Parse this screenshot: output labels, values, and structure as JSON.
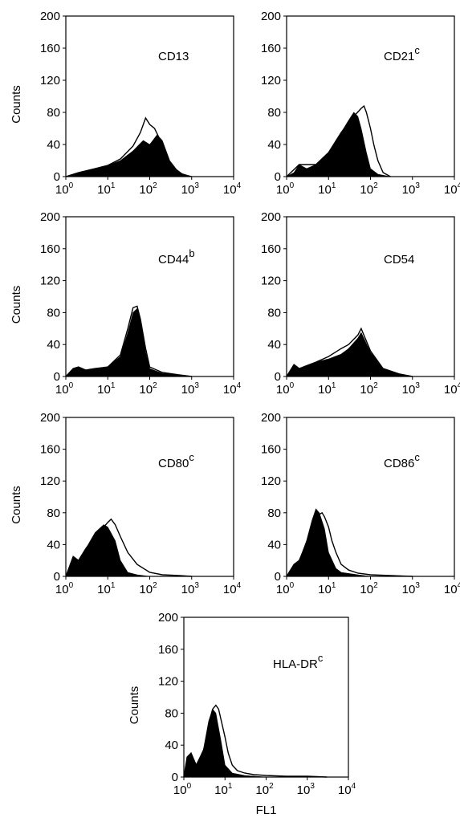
{
  "chart_data": [
    {
      "type": "area",
      "marker": "CD13",
      "marker_sup": "",
      "ylabel": "Counts",
      "xlabel": "",
      "xscale": "log",
      "xlim": [
        1,
        10000
      ],
      "ylim": [
        0,
        200
      ],
      "xticks": [
        {
          "base": "10",
          "exp": "0"
        },
        {
          "base": "10",
          "exp": "1"
        },
        {
          "base": "10",
          "exp": "2"
        },
        {
          "base": "10",
          "exp": "3"
        },
        {
          "base": "10",
          "exp": "4"
        }
      ],
      "yticks": [
        "0",
        "40",
        "80",
        "120",
        "160",
        "200"
      ],
      "series": [
        {
          "fill": "solid",
          "x": [
            1,
            2,
            5,
            10,
            20,
            40,
            70,
            100,
            150,
            200,
            300,
            500,
            1000
          ],
          "y": [
            0,
            5,
            10,
            14,
            20,
            32,
            45,
            40,
            52,
            45,
            20,
            5,
            0
          ]
        },
        {
          "fill": "open",
          "x": [
            1,
            2,
            5,
            10,
            20,
            40,
            60,
            80,
            100,
            130,
            200,
            300,
            600,
            1000
          ],
          "y": [
            0,
            5,
            10,
            14,
            22,
            38,
            55,
            73,
            65,
            60,
            40,
            15,
            3,
            0
          ]
        }
      ]
    },
    {
      "type": "area",
      "marker": "CD21",
      "marker_sup": "c",
      "ylabel": "",
      "xlabel": "",
      "xscale": "log",
      "xlim": [
        1,
        10000
      ],
      "ylim": [
        0,
        200
      ],
      "xticks": [
        {
          "base": "10",
          "exp": "0"
        },
        {
          "base": "10",
          "exp": "1"
        },
        {
          "base": "10",
          "exp": "2"
        },
        {
          "base": "10",
          "exp": "3"
        },
        {
          "base": "10",
          "exp": "4"
        }
      ],
      "yticks": [
        "0",
        "40",
        "80",
        "120",
        "160",
        "200"
      ],
      "series": [
        {
          "fill": "solid",
          "x": [
            1,
            1.5,
            2,
            3,
            5,
            10,
            15,
            20,
            30,
            40,
            50,
            60,
            80,
            100,
            150,
            300
          ],
          "y": [
            0,
            5,
            15,
            10,
            15,
            30,
            45,
            55,
            70,
            80,
            75,
            60,
            30,
            10,
            3,
            0
          ]
        },
        {
          "fill": "open",
          "x": [
            1,
            2,
            5,
            10,
            20,
            40,
            60,
            70,
            80,
            100,
            120,
            150,
            200,
            300
          ],
          "y": [
            0,
            15,
            15,
            30,
            55,
            75,
            85,
            88,
            80,
            60,
            40,
            20,
            5,
            0
          ]
        }
      ]
    },
    {
      "type": "area",
      "marker": "CD44",
      "marker_sup": "b",
      "ylabel": "Counts",
      "xlabel": "",
      "xscale": "log",
      "xlim": [
        1,
        10000
      ],
      "ylim": [
        0,
        200
      ],
      "xticks": [
        {
          "base": "10",
          "exp": "0"
        },
        {
          "base": "10",
          "exp": "1"
        },
        {
          "base": "10",
          "exp": "2"
        },
        {
          "base": "10",
          "exp": "3"
        },
        {
          "base": "10",
          "exp": "4"
        }
      ],
      "yticks": [
        "0",
        "40",
        "80",
        "120",
        "160",
        "200"
      ],
      "series": [
        {
          "fill": "solid",
          "x": [
            1,
            1.5,
            2,
            3,
            5,
            10,
            20,
            30,
            40,
            50,
            60,
            80,
            100,
            200,
            500,
            1000
          ],
          "y": [
            0,
            10,
            12,
            8,
            10,
            12,
            25,
            55,
            80,
            85,
            70,
            30,
            10,
            4,
            2,
            0
          ]
        },
        {
          "fill": "open",
          "x": [
            1,
            1.5,
            2,
            3,
            5,
            10,
            20,
            30,
            40,
            50,
            60,
            80,
            100,
            200,
            500,
            1000
          ],
          "y": [
            0,
            10,
            12,
            8,
            10,
            12,
            27,
            60,
            86,
            88,
            72,
            35,
            12,
            5,
            2,
            0
          ]
        }
      ]
    },
    {
      "type": "area",
      "marker": "CD54",
      "marker_sup": "",
      "ylabel": "",
      "xlabel": "",
      "xscale": "log",
      "xlim": [
        1,
        10000
      ],
      "ylim": [
        0,
        200
      ],
      "xticks": [
        {
          "base": "10",
          "exp": "0"
        },
        {
          "base": "10",
          "exp": "1"
        },
        {
          "base": "10",
          "exp": "2"
        },
        {
          "base": "10",
          "exp": "3"
        },
        {
          "base": "10",
          "exp": "4"
        }
      ],
      "yticks": [
        "0",
        "40",
        "80",
        "120",
        "160",
        "200"
      ],
      "series": [
        {
          "fill": "solid",
          "x": [
            1,
            1.5,
            2,
            5,
            10,
            20,
            30,
            50,
            60,
            100,
            200,
            500,
            1000
          ],
          "y": [
            0,
            15,
            10,
            18,
            22,
            28,
            35,
            48,
            55,
            30,
            10,
            3,
            0
          ]
        },
        {
          "fill": "open",
          "x": [
            1,
            1.5,
            2,
            5,
            10,
            20,
            30,
            50,
            60,
            100,
            200,
            500,
            1000
          ],
          "y": [
            0,
            15,
            10,
            18,
            25,
            35,
            40,
            52,
            60,
            32,
            10,
            3,
            0
          ]
        }
      ]
    },
    {
      "type": "area",
      "marker": "CD80",
      "marker_sup": "c",
      "ylabel": "Counts",
      "xlabel": "",
      "xscale": "log",
      "xlim": [
        1,
        10000
      ],
      "ylim": [
        0,
        200
      ],
      "xticks": [
        {
          "base": "10",
          "exp": "0"
        },
        {
          "base": "10",
          "exp": "1"
        },
        {
          "base": "10",
          "exp": "2"
        },
        {
          "base": "10",
          "exp": "3"
        },
        {
          "base": "10",
          "exp": "4"
        }
      ],
      "yticks": [
        "0",
        "40",
        "80",
        "120",
        "160",
        "200"
      ],
      "series": [
        {
          "fill": "solid",
          "x": [
            1,
            1.5,
            2,
            3,
            5,
            8,
            10,
            15,
            20,
            30,
            50,
            100
          ],
          "y": [
            0,
            25,
            20,
            35,
            55,
            65,
            62,
            45,
            20,
            5,
            2,
            0
          ]
        },
        {
          "fill": "open",
          "x": [
            1,
            1.5,
            2,
            3,
            5,
            8,
            10,
            12,
            15,
            20,
            30,
            50,
            100,
            200,
            500,
            1000
          ],
          "y": [
            0,
            25,
            20,
            35,
            50,
            62,
            68,
            72,
            65,
            50,
            30,
            15,
            5,
            2,
            1,
            0
          ]
        }
      ]
    },
    {
      "type": "area",
      "marker": "CD86",
      "marker_sup": "c",
      "ylabel": "",
      "xlabel": "",
      "xscale": "log",
      "xlim": [
        1,
        10000
      ],
      "ylim": [
        0,
        200
      ],
      "xticks": [
        {
          "base": "10",
          "exp": "0"
        },
        {
          "base": "10",
          "exp": "1"
        },
        {
          "base": "10",
          "exp": "2"
        },
        {
          "base": "10",
          "exp": "3"
        },
        {
          "base": "10",
          "exp": "4"
        }
      ],
      "yticks": [
        "0",
        "40",
        "80",
        "120",
        "160",
        "200"
      ],
      "series": [
        {
          "fill": "solid",
          "x": [
            1,
            1.5,
            2,
            3,
            4,
            5,
            6,
            8,
            10,
            15,
            20,
            50,
            100
          ],
          "y": [
            0,
            15,
            20,
            45,
            70,
            85,
            80,
            60,
            30,
            10,
            5,
            2,
            0
          ]
        },
        {
          "fill": "open",
          "x": [
            1,
            1.5,
            2,
            3,
            4,
            5,
            6,
            7,
            8,
            10,
            12,
            15,
            20,
            30,
            50,
            100,
            300,
            1000
          ],
          "y": [
            0,
            15,
            20,
            42,
            60,
            72,
            78,
            80,
            75,
            62,
            45,
            30,
            15,
            8,
            4,
            2,
            1,
            0
          ]
        }
      ]
    },
    {
      "type": "area",
      "marker": "HLA-DR",
      "marker_sup": "c",
      "ylabel": "Counts",
      "xlabel": "FL1",
      "xscale": "log",
      "xlim": [
        1,
        10000
      ],
      "ylim": [
        0,
        200
      ],
      "xticks": [
        {
          "base": "10",
          "exp": "0"
        },
        {
          "base": "10",
          "exp": "1"
        },
        {
          "base": "10",
          "exp": "2"
        },
        {
          "base": "10",
          "exp": "3"
        },
        {
          "base": "10",
          "exp": "4"
        }
      ],
      "yticks": [
        "0",
        "40",
        "80",
        "120",
        "160",
        "200"
      ],
      "series": [
        {
          "fill": "solid",
          "x": [
            1,
            1.2,
            1.5,
            2,
            3,
            4,
            5,
            6,
            8,
            10,
            15,
            30,
            100
          ],
          "y": [
            0,
            25,
            30,
            15,
            35,
            70,
            85,
            80,
            45,
            15,
            5,
            2,
            0
          ]
        },
        {
          "fill": "open",
          "x": [
            1,
            1.2,
            1.5,
            2,
            3,
            4,
            5,
            6,
            7,
            8,
            10,
            12,
            15,
            20,
            30,
            50,
            100,
            300,
            1000,
            3000
          ],
          "y": [
            0,
            25,
            30,
            15,
            33,
            65,
            85,
            90,
            85,
            72,
            50,
            30,
            15,
            8,
            5,
            3,
            2,
            1,
            1,
            0
          ]
        }
      ]
    }
  ]
}
